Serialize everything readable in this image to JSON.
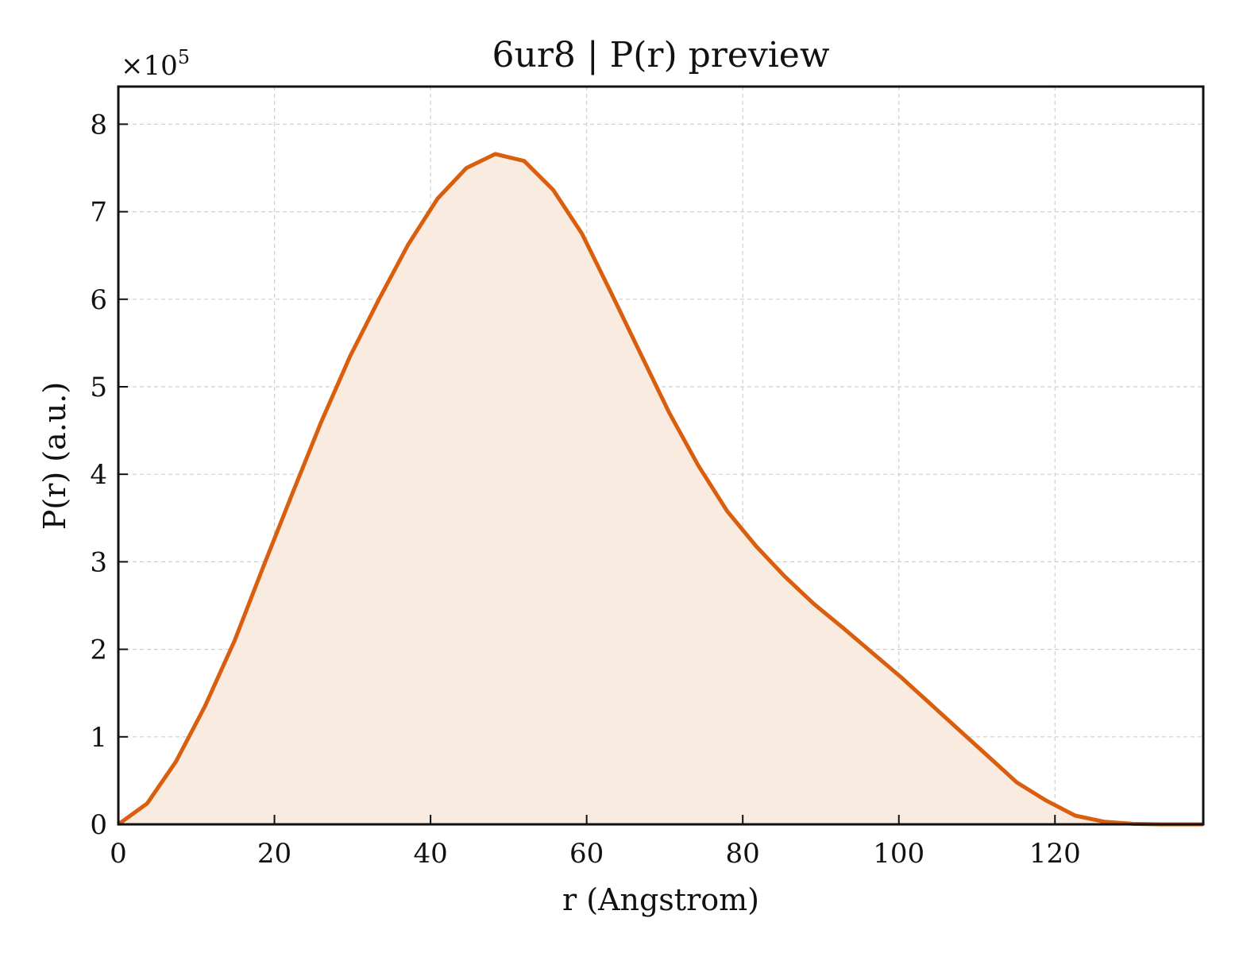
{
  "chart_data": {
    "type": "line",
    "title": "6ur8 | P(r) preview",
    "xlabel": "r (Angstrom)",
    "ylabel": "P(r) (a.u.)",
    "y_multiplier": {
      "prefix": "×10",
      "exponent": "5"
    },
    "xlim": [
      0,
      139
    ],
    "ylim": [
      0,
      8.43
    ],
    "x_ticks": [
      0,
      20,
      40,
      60,
      80,
      100,
      120
    ],
    "y_ticks": [
      0,
      1,
      2,
      3,
      4,
      5,
      6,
      7,
      8
    ],
    "grid": true,
    "line_color": "#d95f0e",
    "fill_color": "#f9ebe0",
    "series": [
      {
        "x": [
          0,
          3.7,
          7.4,
          11.1,
          14.9,
          18.6,
          22.3,
          26.0,
          29.7,
          33.4,
          37.1,
          40.9,
          44.6,
          48.3,
          52.0,
          55.7,
          59.4,
          63.1,
          66.9,
          70.6,
          74.3,
          78.0,
          81.7,
          85.4,
          89.1,
          92.9,
          96.6,
          100.3,
          104.0,
          107.7,
          111.4,
          115.1,
          118.9,
          122.6,
          126.3,
          130.0,
          133.7,
          139.0
        ],
        "y": [
          0,
          0.24,
          0.72,
          1.35,
          2.1,
          2.95,
          3.78,
          4.6,
          5.35,
          6.0,
          6.62,
          7.15,
          7.5,
          7.66,
          7.58,
          7.25,
          6.75,
          6.08,
          5.38,
          4.7,
          4.1,
          3.58,
          3.18,
          2.83,
          2.52,
          2.24,
          1.96,
          1.68,
          1.38,
          1.08,
          0.78,
          0.48,
          0.27,
          0.1,
          0.03,
          0.005,
          0.0,
          0.0
        ]
      }
    ]
  }
}
